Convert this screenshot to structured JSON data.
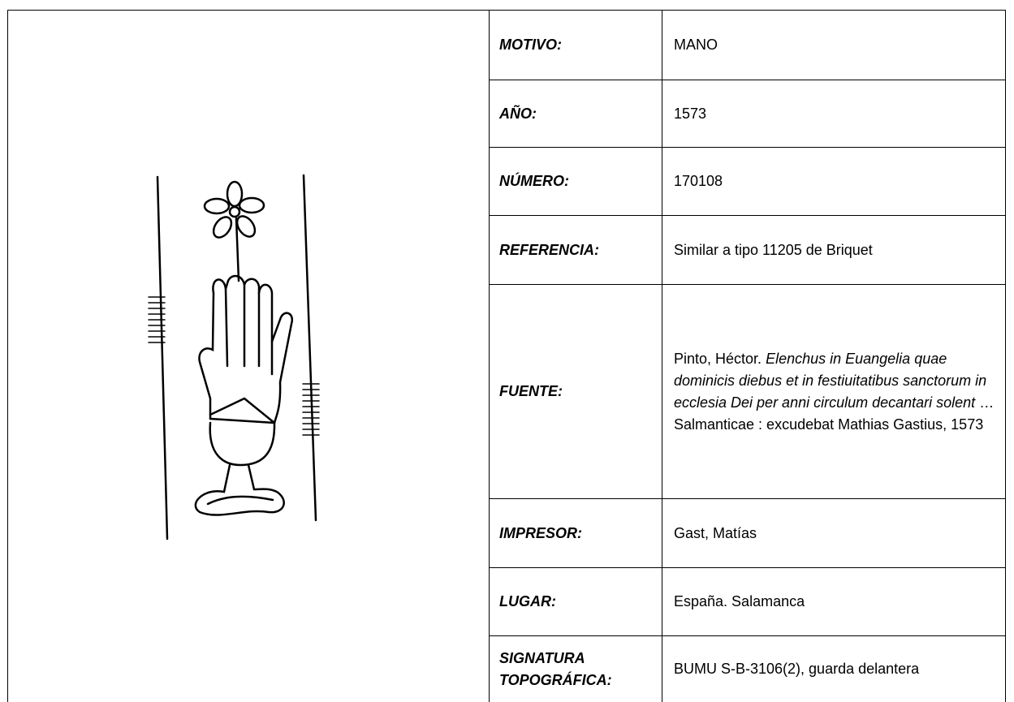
{
  "fields": [
    {
      "label": "MOTIVO:",
      "value": "MANO"
    },
    {
      "label": "AÑO:",
      "value": "1573"
    },
    {
      "label": "NÚMERO:",
      "value": "170108"
    },
    {
      "label": "REFERENCIA:",
      "value": "Similar a tipo 11205 de Briquet"
    },
    {
      "label": "FUENTE:",
      "value_parts": [
        {
          "text": "Pinto, Héctor. ",
          "italic": false
        },
        {
          "text": "Elenchus in Euangelia quae dominicis diebus et in festiuitatibus sanctorum in ecclesia Dei per anni circulum decantari solent",
          "italic": true
        },
        {
          "text": " … Salmanticae : excudebat Mathias Gastius, 1573",
          "italic": false
        }
      ]
    },
    {
      "label": "IMPRESOR:",
      "value": "Gast, Matías"
    },
    {
      "label": "LUGAR:",
      "value": "España. Salamanca"
    },
    {
      "label": "SIGNATURA TOPOGRÁFICA:",
      "value": "BUMU S-B-3106(2), guarda delantera"
    }
  ]
}
